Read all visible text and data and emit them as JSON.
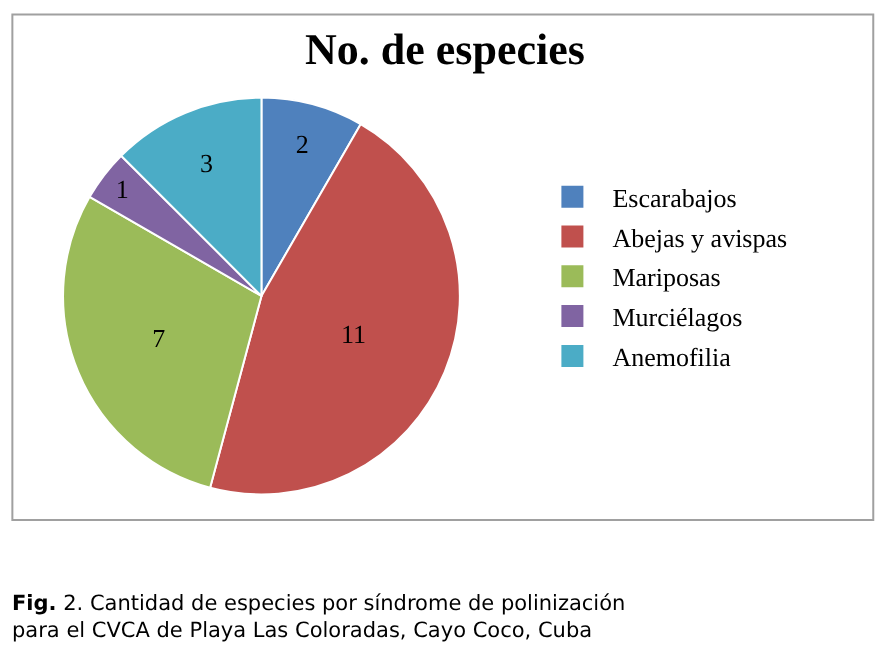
{
  "chart_data": {
    "type": "pie",
    "title": "No. de especies",
    "categories": [
      "Escarabajos",
      "Abejas y avispas",
      "Mariposas",
      "Murciélagos",
      "Anemofilia"
    ],
    "values": [
      2,
      11,
      7,
      1,
      3
    ],
    "colors": [
      "#4f81bd",
      "#c0504d",
      "#9bbb59",
      "#8064a2",
      "#4bacc6"
    ],
    "data_labels": true,
    "legend": "right",
    "annotations": [
      "Fig. 2. Cantidad de especies por síndrome de polinización para el CVCA de Playa Las Coloradas, Cayo Coco, Cuba"
    ]
  }
}
